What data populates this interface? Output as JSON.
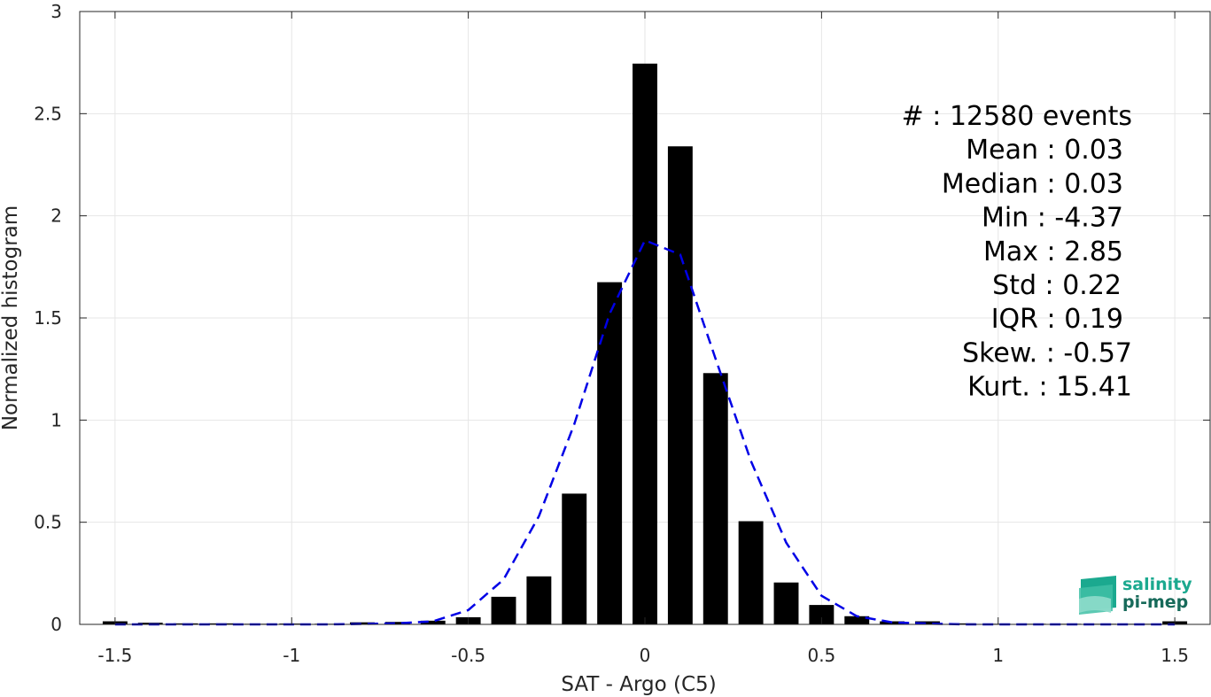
{
  "chart_data": {
    "type": "bar",
    "xlabel": "SAT - Argo (C5)",
    "ylabel": "Normalized histogram",
    "xlim": [
      -1.6,
      1.6
    ],
    "ylim": [
      0,
      3
    ],
    "grid": true,
    "x_ticks": [
      -1.5,
      -1,
      -0.5,
      0,
      0.5,
      1,
      1.5
    ],
    "x_tick_labels": [
      "-1.5",
      "-1",
      "-0.5",
      "0",
      "0.5",
      "1",
      "1.5"
    ],
    "y_ticks": [
      0,
      0.5,
      1,
      1.5,
      2,
      2.5,
      3
    ],
    "y_tick_labels": [
      "0",
      "0.5",
      "1",
      "1.5",
      "2",
      "2.5",
      "3"
    ],
    "bar_width": 0.07,
    "bar_color": "#000000",
    "bars": {
      "x": [
        -1.5,
        -1.4,
        -1.3,
        -1.2,
        -1.1,
        -1.0,
        -0.9,
        -0.8,
        -0.7,
        -0.6,
        -0.5,
        -0.4,
        -0.3,
        -0.2,
        -0.1,
        0.0,
        0.1,
        0.2,
        0.3,
        0.4,
        0.5,
        0.6,
        0.7,
        0.8,
        0.9,
        1.0,
        1.1,
        1.2,
        1.3,
        1.4,
        1.5
      ],
      "values": [
        0.015,
        0.008,
        0.005,
        0.005,
        0.003,
        0.004,
        0.003,
        0.01,
        0.012,
        0.018,
        0.035,
        0.135,
        0.235,
        0.64,
        1.675,
        2.745,
        2.34,
        1.23,
        0.505,
        0.205,
        0.095,
        0.04,
        0.015,
        0.015,
        0.005,
        0.003,
        0.003,
        0.003,
        0.003,
        0.003,
        0.015
      ]
    },
    "fit_curve": {
      "style": "dashed",
      "color": "#0000E6",
      "x": [
        -1.5,
        -1.4,
        -1.3,
        -1.2,
        -1.1,
        -1.0,
        -0.9,
        -0.8,
        -0.7,
        -0.6,
        -0.5,
        -0.4,
        -0.3,
        -0.2,
        -0.1,
        0.0,
        0.1,
        0.2,
        0.3,
        0.4,
        0.5,
        0.6,
        0.7,
        0.8,
        0.9,
        1.0,
        1.1,
        1.2,
        1.3,
        1.4,
        1.5
      ],
      "values": [
        0.0,
        0.0,
        0.0,
        0.0,
        0.0,
        0.0,
        0.0,
        0.002,
        0.005,
        0.015,
        0.07,
        0.22,
        0.53,
        0.98,
        1.52,
        1.88,
        1.81,
        1.3,
        0.8,
        0.4,
        0.14,
        0.04,
        0.01,
        0.004,
        0.0,
        0.0,
        0.0,
        0.0,
        0.0,
        0.0,
        0.0
      ]
    },
    "annotations": [
      "#  : 12580 events",
      "Mean : 0.03",
      "Median : 0.03",
      "Min : -4.37",
      "Max : 2.85",
      "Std : 0.22",
      "IQR : 0.19",
      "Skew. : -0.57",
      "Kurt. : 15.41"
    ]
  },
  "logo": {
    "line1": "salinity",
    "line2": "pi-mep",
    "color": "#1BA98F"
  }
}
